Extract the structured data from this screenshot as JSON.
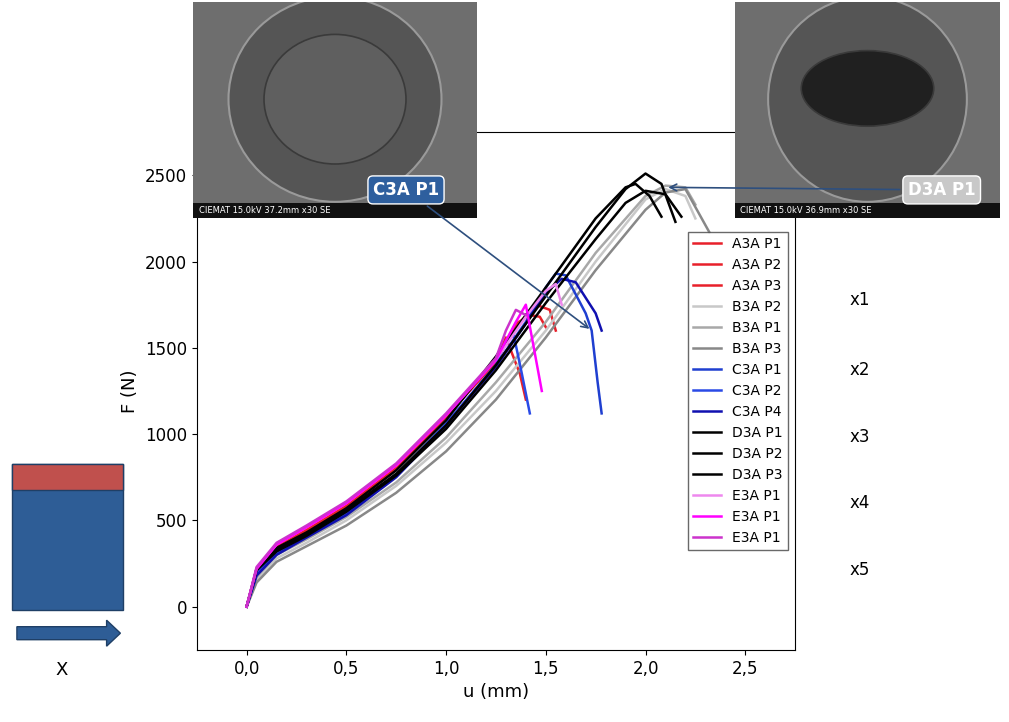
{
  "chart_data": {
    "type": "line",
    "x_label": "u (mm)",
    "y_label": "F (N)",
    "xlim": [
      -0.25,
      2.75
    ],
    "ylim": [
      -250,
      2750
    ],
    "xticks": [
      {
        "value": 0.0,
        "label": "0,0"
      },
      {
        "value": 0.5,
        "label": "0,5"
      },
      {
        "value": 1.0,
        "label": "1,0"
      },
      {
        "value": 1.5,
        "label": "1,5"
      },
      {
        "value": 2.0,
        "label": "2,0"
      },
      {
        "value": 2.5,
        "label": "2,5"
      }
    ],
    "yticks": [
      0,
      500,
      1000,
      1500,
      2000,
      2500
    ],
    "grid": false,
    "legend": "center right",
    "series": [
      {
        "name": "A3A P1",
        "color": "#e8202a",
        "x": [
          0,
          0.05,
          0.15,
          0.3,
          0.5,
          0.75,
          1.0,
          1.25,
          1.35,
          1.45,
          1.52,
          1.55
        ],
        "values": [
          0,
          200,
          340,
          440,
          580,
          800,
          1100,
          1420,
          1620,
          1750,
          1720,
          1600
        ]
      },
      {
        "name": "A3A P2",
        "color": "#e8202a",
        "x": [
          0,
          0.05,
          0.15,
          0.3,
          0.5,
          0.75,
          1.0,
          1.25,
          1.3,
          1.32,
          1.37,
          1.4
        ],
        "values": [
          0,
          200,
          340,
          440,
          580,
          800,
          1100,
          1420,
          1560,
          1500,
          1350,
          1200
        ]
      },
      {
        "name": "A3A P3",
        "color": "#e8202a",
        "x": [
          0,
          0.05,
          0.15,
          0.3,
          0.5,
          0.75,
          1.0,
          1.25,
          1.35,
          1.42,
          1.47,
          1.5
        ],
        "values": [
          0,
          210,
          350,
          450,
          590,
          810,
          1110,
          1430,
          1640,
          1690,
          1680,
          1620
        ]
      },
      {
        "name": "B3A P2",
        "color": "#c8c8c8",
        "x": [
          0,
          0.05,
          0.15,
          0.3,
          0.5,
          0.75,
          1.0,
          1.25,
          1.5,
          1.75,
          2.0,
          2.1,
          2.2,
          2.25
        ],
        "values": [
          0,
          150,
          280,
          370,
          500,
          700,
          950,
          1250,
          1600,
          2000,
          2360,
          2420,
          2380,
          2250
        ]
      },
      {
        "name": "B3A P1",
        "color": "#a8a8a8",
        "x": [
          0,
          0.05,
          0.15,
          0.3,
          0.5,
          0.75,
          1.0,
          1.25,
          1.5,
          1.75,
          2.0,
          2.1,
          2.2,
          2.25
        ],
        "values": [
          0,
          170,
          300,
          390,
          520,
          720,
          980,
          1300,
          1650,
          2050,
          2380,
          2440,
          2430,
          2330
        ]
      },
      {
        "name": "B3A P3",
        "color": "#888888",
        "x": [
          0,
          0.05,
          0.15,
          0.3,
          0.5,
          0.75,
          1.0,
          1.25,
          1.5,
          1.75,
          2.0,
          2.1,
          2.2,
          2.32
        ],
        "values": [
          0,
          140,
          260,
          350,
          470,
          660,
          900,
          1200,
          1560,
          1950,
          2300,
          2400,
          2420,
          2170
        ]
      },
      {
        "name": "C3A P1",
        "color": "#1f3fd0",
        "x": [
          0,
          0.05,
          0.15,
          0.3,
          0.5,
          0.75,
          1.0,
          1.25,
          1.4,
          1.5,
          1.55,
          1.6,
          1.7,
          1.73,
          1.76,
          1.78
        ],
        "values": [
          0,
          190,
          310,
          410,
          540,
          760,
          1060,
          1400,
          1650,
          1850,
          1930,
          1920,
          1700,
          1600,
          1300,
          1120
        ]
      },
      {
        "name": "C3A P2",
        "color": "#2a4ae6",
        "x": [
          0,
          0.05,
          0.15,
          0.3,
          0.5,
          0.75,
          1.0,
          1.25,
          1.3,
          1.34,
          1.38,
          1.42
        ],
        "values": [
          0,
          190,
          310,
          410,
          540,
          760,
          1060,
          1400,
          1540,
          1570,
          1350,
          1120
        ]
      },
      {
        "name": "C3A P4",
        "color": "#1010b0",
        "x": [
          0,
          0.05,
          0.15,
          0.3,
          0.5,
          0.75,
          1.0,
          1.25,
          1.4,
          1.5,
          1.58,
          1.65,
          1.75,
          1.78
        ],
        "values": [
          0,
          180,
          300,
          400,
          530,
          750,
          1050,
          1390,
          1640,
          1820,
          1900,
          1880,
          1700,
          1600
        ]
      },
      {
        "name": "D3A P1",
        "color": "#000000",
        "x": [
          0,
          0.05,
          0.15,
          0.3,
          0.5,
          0.75,
          1.0,
          1.25,
          1.5,
          1.75,
          1.9,
          2.0,
          2.08,
          2.15
        ],
        "values": [
          0,
          220,
          330,
          420,
          560,
          770,
          1050,
          1400,
          1800,
          2200,
          2420,
          2510,
          2450,
          2230
        ]
      },
      {
        "name": "D3A P2",
        "color": "#000000",
        "x": [
          0,
          0.05,
          0.15,
          0.3,
          0.5,
          0.75,
          1.0,
          1.25,
          1.5,
          1.75,
          1.9,
          1.95,
          2.02,
          2.08
        ],
        "values": [
          0,
          220,
          340,
          430,
          570,
          790,
          1080,
          1450,
          1850,
          2250,
          2430,
          2450,
          2380,
          2260
        ]
      },
      {
        "name": "D3A P3",
        "color": "#000000",
        "x": [
          0,
          0.05,
          0.15,
          0.3,
          0.5,
          0.75,
          1.0,
          1.25,
          1.5,
          1.75,
          1.9,
          2.0,
          2.1,
          2.18
        ],
        "values": [
          0,
          210,
          320,
          410,
          550,
          760,
          1030,
          1370,
          1760,
          2130,
          2340,
          2410,
          2390,
          2260
        ]
      },
      {
        "name": "E3A P1",
        "color": "#ee88ee",
        "x": [
          0,
          0.05,
          0.15,
          0.3,
          0.5,
          0.75,
          1.0,
          1.25,
          1.4,
          1.5,
          1.55,
          1.58
        ],
        "values": [
          0,
          220,
          360,
          460,
          600,
          820,
          1110,
          1430,
          1680,
          1830,
          1870,
          1750
        ]
      },
      {
        "name": "E3A P1",
        "color": "#ff00ff",
        "x": [
          0,
          0.05,
          0.15,
          0.3,
          0.5,
          0.75,
          1.0,
          1.25,
          1.35,
          1.4,
          1.44,
          1.48
        ],
        "values": [
          0,
          220,
          360,
          460,
          600,
          820,
          1110,
          1430,
          1650,
          1750,
          1500,
          1250
        ]
      },
      {
        "name": "E3A P1",
        "color": "#cc33cc",
        "x": [
          0,
          0.05,
          0.15,
          0.3,
          0.5,
          0.75,
          1.0,
          1.25,
          1.3,
          1.35,
          1.4
        ],
        "values": [
          0,
          230,
          370,
          470,
          610,
          830,
          1120,
          1440,
          1600,
          1720,
          1690
        ]
      }
    ],
    "annotations": [
      {
        "text": "C3A P1",
        "caption": "CIEMAT 15.0kV 37.2mm x30 SE",
        "x": 1.73,
        "y": 1600
      },
      {
        "text": "D3A P1",
        "caption": "CIEMAT 15.0kV 36.9mm x30 SE",
        "x": 2.1,
        "y": 2430
      }
    ],
    "side_labels": [
      "x1",
      "x2",
      "x3",
      "x4",
      "x5"
    ],
    "diagram_label": "X"
  }
}
